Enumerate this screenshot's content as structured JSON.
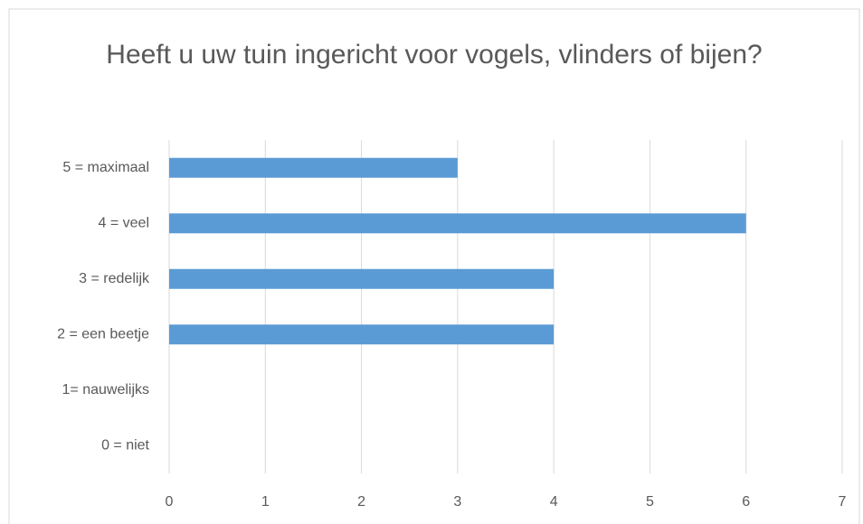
{
  "chart_data": {
    "type": "bar",
    "orientation": "horizontal",
    "title": "Heeft u uw tuin ingericht voor vogels, vlinders of bijen?",
    "categories": [
      "5 = maximaal",
      "4 = veel",
      "3 = redelijk",
      "2 = een beetje",
      "1= nauwelijks",
      "0 = niet"
    ],
    "values": [
      3,
      6,
      4,
      4,
      0,
      0
    ],
    "color": "#5b9bd5",
    "xlim": [
      0,
      7
    ],
    "xticks": [
      0,
      1,
      2,
      3,
      4,
      5,
      6,
      7
    ],
    "grid": true
  }
}
